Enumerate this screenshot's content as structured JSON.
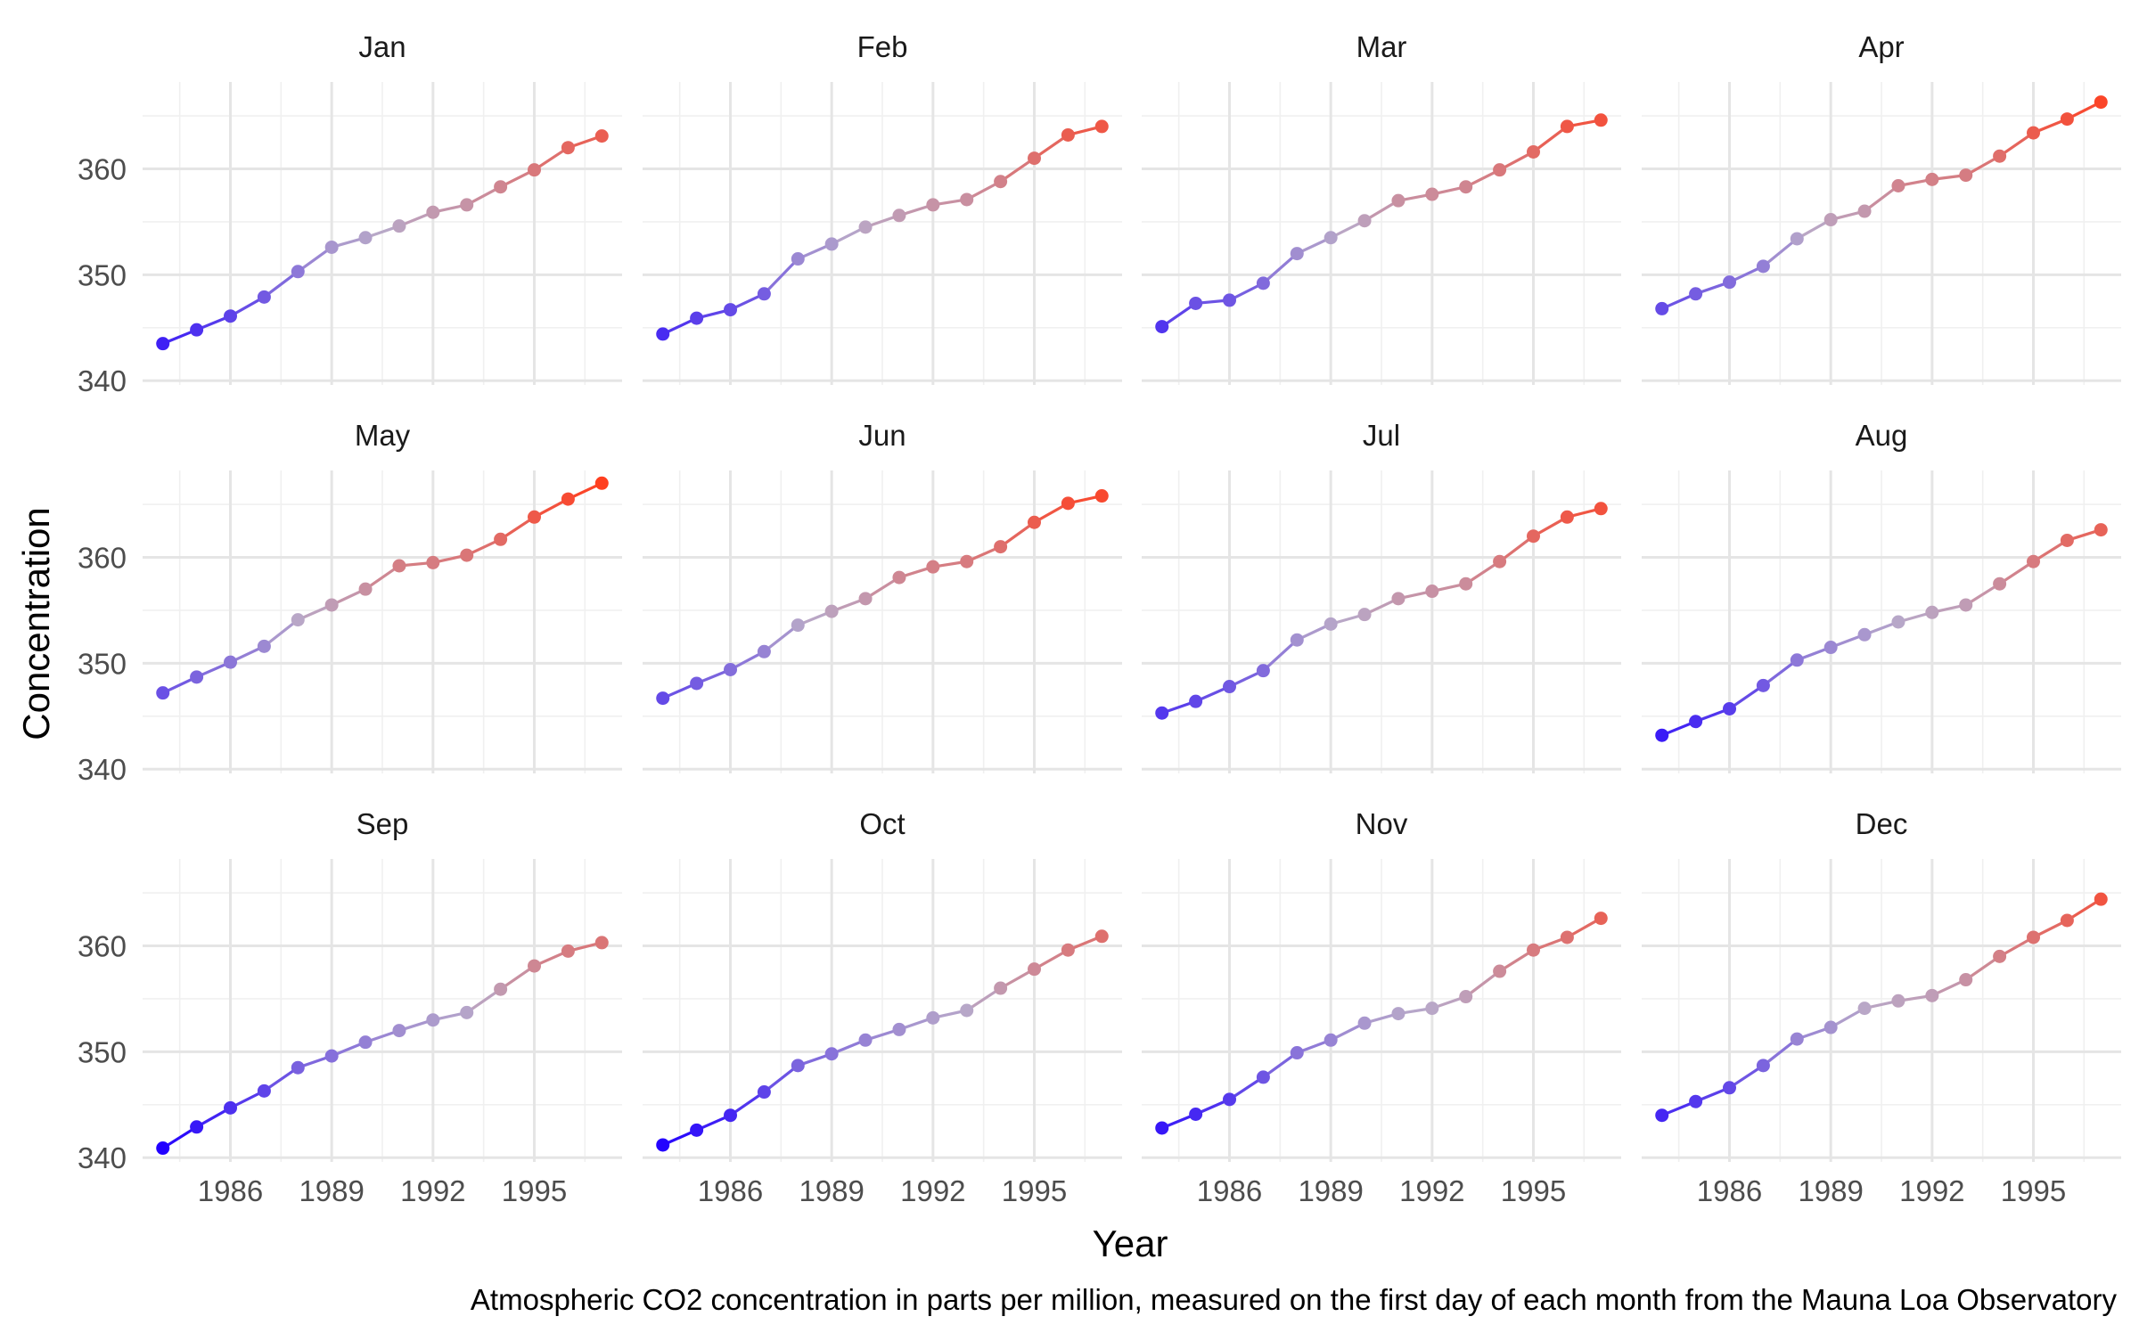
{
  "chart_data": {
    "type": "line",
    "layout": "facet-grid-3x4",
    "x": [
      1984,
      1985,
      1986,
      1987,
      1988,
      1989,
      1990,
      1991,
      1992,
      1993,
      1994,
      1995,
      1996,
      1997
    ],
    "xticks": [
      1986,
      1989,
      1992,
      1995
    ],
    "xlim": [
      1983.4,
      1997.6
    ],
    "yticks": [
      340,
      350,
      360
    ],
    "ylim": [
      339.6,
      368.2
    ],
    "xlabel": "Year",
    "ylabel": "Concentration",
    "caption": "Atmospheric CO2 concentration in parts per million, measured on the first day of each month from the Mauna Loa Observatory",
    "color_scale": {
      "low": "#2200ff",
      "mid": "#b8a8c8",
      "high": "#ff3f1f",
      "domain": [
        341,
        367
      ]
    },
    "panels": [
      {
        "name": "Jan",
        "values": [
          343.5,
          344.8,
          346.1,
          347.9,
          350.3,
          352.6,
          353.5,
          354.6,
          355.9,
          356.6,
          358.3,
          359.9,
          362.0,
          363.1
        ]
      },
      {
        "name": "Feb",
        "values": [
          344.4,
          345.9,
          346.7,
          348.2,
          351.5,
          352.9,
          354.5,
          355.6,
          356.6,
          357.1,
          358.8,
          361.0,
          363.2,
          364.0
        ]
      },
      {
        "name": "Mar",
        "values": [
          345.1,
          347.3,
          347.6,
          349.2,
          352.0,
          353.5,
          355.1,
          357.0,
          357.6,
          358.3,
          359.9,
          361.6,
          364.0,
          364.6
        ]
      },
      {
        "name": "Apr",
        "values": [
          346.8,
          348.2,
          349.3,
          350.8,
          353.4,
          355.2,
          356.0,
          358.4,
          359.0,
          359.4,
          361.2,
          363.4,
          364.7,
          366.3
        ]
      },
      {
        "name": "May",
        "values": [
          347.2,
          348.7,
          350.1,
          351.6,
          354.1,
          355.5,
          357.0,
          359.2,
          359.5,
          360.2,
          361.7,
          363.8,
          365.5,
          367.0
        ]
      },
      {
        "name": "Jun",
        "values": [
          346.7,
          348.1,
          349.4,
          351.1,
          353.6,
          354.9,
          356.1,
          358.1,
          359.1,
          359.6,
          361.0,
          363.3,
          365.1,
          365.8
        ]
      },
      {
        "name": "Jul",
        "values": [
          345.3,
          346.4,
          347.8,
          349.3,
          352.2,
          353.7,
          354.6,
          356.1,
          356.8,
          357.5,
          359.6,
          362.0,
          363.8,
          364.6
        ]
      },
      {
        "name": "Aug",
        "values": [
          343.2,
          344.5,
          345.7,
          347.9,
          350.3,
          351.5,
          352.7,
          353.9,
          354.8,
          355.5,
          357.5,
          359.6,
          361.6,
          362.6
        ]
      },
      {
        "name": "Sep",
        "values": [
          340.9,
          342.9,
          344.7,
          346.3,
          348.5,
          349.6,
          350.9,
          352.0,
          353.0,
          353.7,
          355.9,
          358.1,
          359.5,
          360.3
        ]
      },
      {
        "name": "Oct",
        "values": [
          341.2,
          342.6,
          344.0,
          346.2,
          348.7,
          349.8,
          351.1,
          352.1,
          353.2,
          353.9,
          356.0,
          357.8,
          359.6,
          360.9
        ]
      },
      {
        "name": "Nov",
        "values": [
          342.8,
          344.1,
          345.5,
          347.6,
          349.9,
          351.1,
          352.7,
          353.6,
          354.1,
          355.2,
          357.6,
          359.6,
          360.8,
          362.6
        ]
      },
      {
        "name": "Dec",
        "values": [
          344.0,
          345.3,
          346.6,
          348.7,
          351.2,
          352.3,
          354.1,
          354.8,
          355.3,
          356.8,
          359.0,
          360.8,
          362.4,
          364.4
        ]
      }
    ]
  }
}
